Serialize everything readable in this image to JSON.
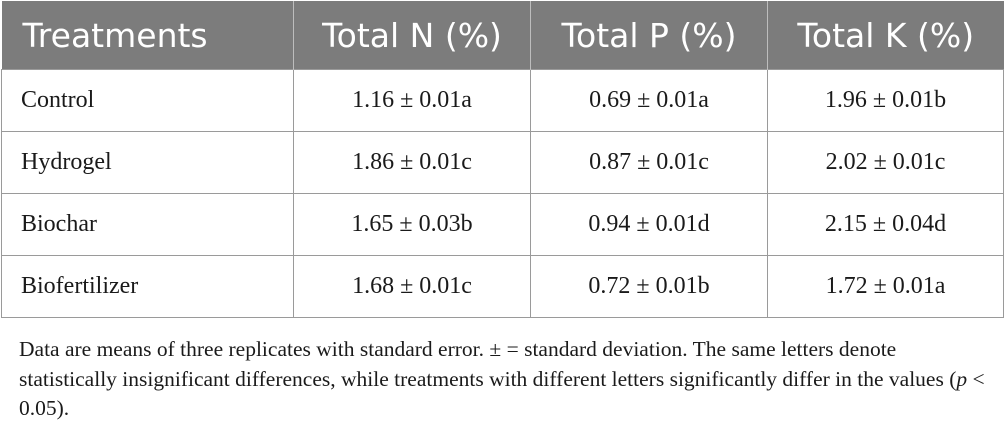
{
  "table": {
    "headers": [
      "Treatments",
      "Total N (%)",
      "Total P (%)",
      "Total K (%)"
    ],
    "rows": [
      [
        "Control",
        "1.16 ± 0.01a",
        "0.69 ± 0.01a",
        "1.96 ± 0.01b"
      ],
      [
        "Hydrogel",
        "1.86 ± 0.01c",
        "0.87 ± 0.01c",
        "2.02 ± 0.01c"
      ],
      [
        "Biochar",
        "1.65 ± 0.03b",
        "0.94 ± 0.01d",
        "2.15 ± 0.04d"
      ],
      [
        "Biofertilizer",
        "1.68 ± 0.01c",
        "0.72 ± 0.01b",
        "1.72 ± 0.01a"
      ]
    ]
  },
  "footnote": {
    "text_before": "Data are means of three replicates with standard error. ± = standard deviation. The same letters denote statistically insignificant differences, while treatments with different letters significantly differ in the values (",
    "italic": "p",
    "text_after": " < 0.05)."
  },
  "colors": {
    "header_bg": "#7c7c7c",
    "header_text": "#ffffff",
    "border": "#9a9a9a"
  }
}
